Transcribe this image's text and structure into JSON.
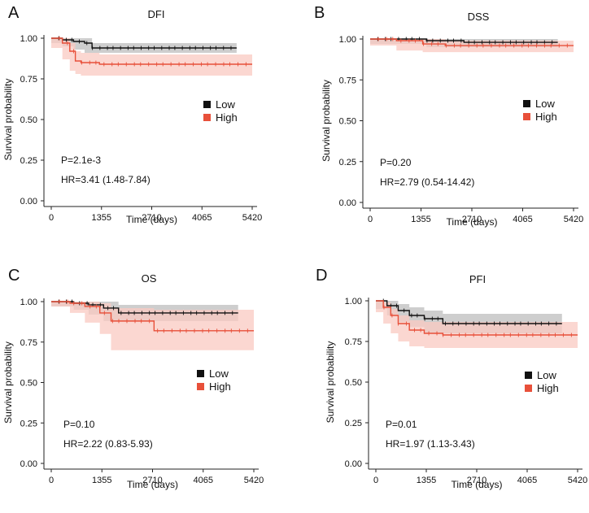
{
  "colors": {
    "low": "#111111",
    "high": "#e8503a",
    "low_band": "#bdbdbd",
    "high_band": "#f9c9c1",
    "axis": "#222222"
  },
  "chart_data": [
    {
      "panel": "A",
      "title": "DFI",
      "type": "line",
      "xlabel": "Time (days)",
      "ylabel": "Survival probability",
      "xticks": [
        "0",
        "1355",
        "2710",
        "4065",
        "5420"
      ],
      "yticks": [
        "0.00",
        "0.25",
        "0.50",
        "0.75",
        "1.00"
      ],
      "xlim": [
        0,
        5420
      ],
      "ylim": [
        0,
        1
      ],
      "legend": [
        {
          "label": "Low",
          "color": "#111111"
        },
        {
          "label": "High",
          "color": "#e8503a"
        }
      ],
      "legend_position": "right-middle",
      "pvalue": "P=2.1e-3",
      "hr": "HR=3.41 (1.48-7.84)",
      "series": [
        {
          "name": "Low",
          "color": "#111111",
          "x": [
            0,
            300,
            600,
            900,
            1100,
            5000
          ],
          "y": [
            1.0,
            0.99,
            0.98,
            0.97,
            0.94,
            0.94
          ],
          "lower": [
            1.0,
            0.97,
            0.95,
            0.93,
            0.91,
            0.91
          ],
          "upper": [
            1.0,
            1.0,
            1.0,
            1.0,
            0.97,
            0.97
          ]
        },
        {
          "name": "High",
          "color": "#e8503a",
          "x": [
            0,
            300,
            500,
            650,
            800,
            1300,
            5420
          ],
          "y": [
            1.0,
            0.97,
            0.92,
            0.86,
            0.85,
            0.84,
            0.84
          ],
          "lower": [
            1.0,
            0.94,
            0.87,
            0.8,
            0.78,
            0.77,
            0.77
          ],
          "upper": [
            1.0,
            1.0,
            0.97,
            0.92,
            0.91,
            0.9,
            0.9
          ]
        }
      ]
    },
    {
      "panel": "B",
      "title": "DSS",
      "type": "line",
      "xlabel": "Time (days)",
      "ylabel": "Survival probability",
      "xticks": [
        "0",
        "1355",
        "2710",
        "4065",
        "5420"
      ],
      "yticks": [
        "0.00",
        "0.25",
        "0.50",
        "0.75",
        "1.00"
      ],
      "xlim": [
        0,
        5420
      ],
      "ylim": [
        0,
        1
      ],
      "legend": [
        {
          "label": "Low",
          "color": "#111111"
        },
        {
          "label": "High",
          "color": "#e8503a"
        }
      ],
      "legend_position": "right-middle",
      "pvalue": "P=0.20",
      "hr": "HR=2.79 (0.54-14.42)",
      "series": [
        {
          "name": "Low",
          "color": "#111111",
          "x": [
            0,
            1500,
            2500,
            5000
          ],
          "y": [
            1.0,
            0.99,
            0.98,
            0.98
          ],
          "lower": [
            1.0,
            0.97,
            0.95,
            0.95
          ],
          "upper": [
            1.0,
            1.0,
            1.0,
            1.0
          ]
        },
        {
          "name": "High",
          "color": "#e8503a",
          "x": [
            0,
            700,
            1400,
            2000,
            5420
          ],
          "y": [
            1.0,
            0.99,
            0.97,
            0.96,
            0.96
          ],
          "lower": [
            1.0,
            0.96,
            0.93,
            0.92,
            0.92
          ],
          "upper": [
            1.0,
            1.0,
            1.0,
            0.99,
            0.99
          ]
        }
      ]
    },
    {
      "panel": "C",
      "title": "OS",
      "type": "line",
      "xlabel": "Time (days)",
      "ylabel": "Survival probability",
      "xticks": [
        "0",
        "1355",
        "2710",
        "4065",
        "5420"
      ],
      "yticks": [
        "0.00",
        "0.25",
        "0.50",
        "0.75",
        "1.00"
      ],
      "xlim": [
        0,
        5420
      ],
      "ylim": [
        0,
        1
      ],
      "legend": [
        {
          "label": "Low",
          "color": "#111111"
        },
        {
          "label": "High",
          "color": "#e8503a"
        }
      ],
      "legend_position": "right-middle",
      "pvalue": "P=0.10",
      "hr": "HR=2.22 (0.83-5.93)",
      "series": [
        {
          "name": "Low",
          "color": "#111111",
          "x": [
            0,
            600,
            1000,
            1400,
            1800,
            5000
          ],
          "y": [
            1.0,
            0.99,
            0.98,
            0.96,
            0.93,
            0.93
          ],
          "lower": [
            1.0,
            0.97,
            0.95,
            0.92,
            0.88,
            0.88
          ],
          "upper": [
            1.0,
            1.0,
            1.0,
            1.0,
            0.98,
            0.98
          ]
        },
        {
          "name": "High",
          "color": "#e8503a",
          "x": [
            0,
            500,
            900,
            1300,
            1600,
            2750,
            5420
          ],
          "y": [
            1.0,
            0.99,
            0.97,
            0.93,
            0.88,
            0.82,
            0.82
          ],
          "lower": [
            1.0,
            0.97,
            0.93,
            0.87,
            0.8,
            0.7,
            0.7
          ],
          "upper": [
            1.0,
            1.0,
            1.0,
            0.99,
            0.96,
            0.95,
            0.95
          ]
        }
      ]
    },
    {
      "panel": "D",
      "title": "PFI",
      "type": "line",
      "xlabel": "Time (days)",
      "ylabel": "Survival probability",
      "xticks": [
        "0",
        "1355",
        "2710",
        "4065",
        "5420"
      ],
      "yticks": [
        "0.00",
        "0.25",
        "0.50",
        "0.75",
        "1.00"
      ],
      "xlim": [
        0,
        5420
      ],
      "ylim": [
        0,
        1
      ],
      "legend": [
        {
          "label": "Low",
          "color": "#111111"
        },
        {
          "label": "High",
          "color": "#e8503a"
        }
      ],
      "legend_position": "right-middle",
      "pvalue": "P=0.01",
      "hr": "HR=1.97 (1.13-3.43)",
      "series": [
        {
          "name": "Low",
          "color": "#111111",
          "x": [
            0,
            300,
            600,
            900,
            1300,
            1800,
            5000
          ],
          "y": [
            1.0,
            0.97,
            0.94,
            0.91,
            0.89,
            0.86,
            0.86
          ],
          "lower": [
            1.0,
            0.95,
            0.91,
            0.87,
            0.84,
            0.8,
            0.8
          ],
          "upper": [
            1.0,
            1.0,
            0.98,
            0.96,
            0.94,
            0.92,
            0.92
          ]
        },
        {
          "name": "High",
          "color": "#e8503a",
          "x": [
            0,
            200,
            400,
            600,
            900,
            1300,
            1800,
            5420
          ],
          "y": [
            1.0,
            0.96,
            0.91,
            0.86,
            0.82,
            0.8,
            0.79,
            0.79
          ],
          "lower": [
            1.0,
            0.93,
            0.86,
            0.8,
            0.75,
            0.72,
            0.71,
            0.71
          ],
          "upper": [
            1.0,
            0.99,
            0.95,
            0.91,
            0.88,
            0.87,
            0.87,
            0.87
          ]
        }
      ]
    }
  ]
}
